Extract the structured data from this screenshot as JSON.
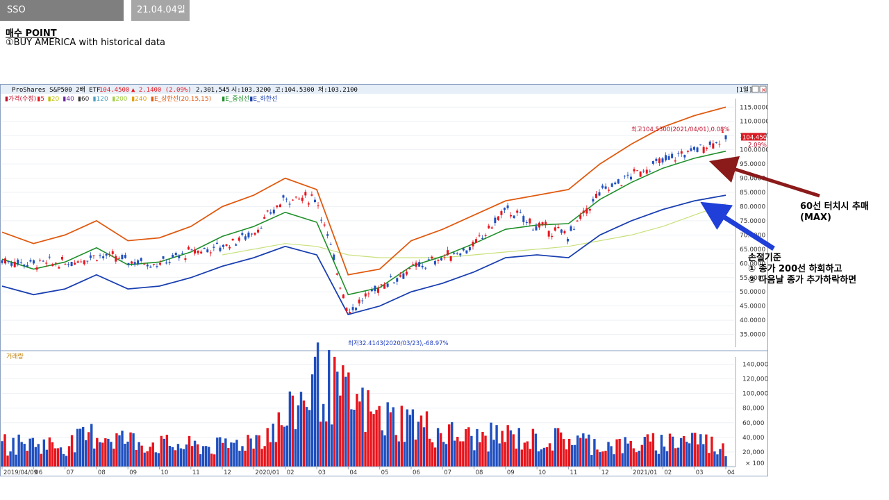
{
  "tabs": {
    "title": "SSO",
    "date": "21.04.04일"
  },
  "heading": "매수 POINT",
  "subtitle": "①BUY AMERICA with historical data",
  "chart_header": {
    "name": "ProShares S&P500 2배 ETF",
    "price": "104.4500",
    "change": "▲ 2.1400 (2.09%)",
    "volume": "2,301,545",
    "ohlc": "시:103.3200 고:104.5300 저:103.2100",
    "period": "[1일]"
  },
  "legend": {
    "price": "가격(수정)",
    "ma": [
      "5",
      "20",
      "40",
      "60",
      "120",
      "200",
      "240"
    ],
    "envelope": [
      "E_상한선(20,15,15)",
      "E_중심선",
      "E_하한선"
    ],
    "volume": "거래량"
  },
  "colors": {
    "up": "#e8141c",
    "down": "#1f4fbf",
    "upper_band": "#e05a10",
    "middle_band": "#1f8f2a",
    "lower_band": "#1a3fb0",
    "ma200": "#c8e07a",
    "ma240": "#e0c050",
    "ma120": "#7ab0c8"
  },
  "callouts": {
    "high": "최고104.5300(2021/04/01),0.08%",
    "low": "최저32.4143(2020/03/23),-68.97%",
    "last_price": "104.4500",
    "last_change": "2.09%"
  },
  "annotations": {
    "sell": [
      "60선 터치시 추매",
      "(MAX)"
    ],
    "stoploss": [
      "손절기준",
      "① 종가 200선 하회하고",
      "② 다음날 종가 추가하락하면"
    ]
  },
  "chart_data": [
    {
      "type": "line",
      "title": "ProShares S&P500 2배 ETF",
      "y_ticks": [
        "115.0000",
        "110.0000",
        "105.0000",
        "100.0000",
        "95.0000",
        "90.0000",
        "85.0000",
        "80.0000",
        "75.0000",
        "70.0000",
        "65.0000",
        "60.0000",
        "55.0000",
        "50.0000",
        "45.0000",
        "40.0000",
        "35.0000"
      ],
      "ylim": [
        30.5,
        118
      ],
      "x_ticks": [
        "2019/04/09",
        "06",
        "07",
        "08",
        "09",
        "10",
        "11",
        "12",
        "2020/01",
        "02",
        "03",
        "04",
        "05",
        "06",
        "07",
        "08",
        "09",
        "10",
        "11",
        "12",
        "2021/01",
        "02",
        "03",
        "04"
      ],
      "close_monthly": [
        61,
        60,
        60,
        63,
        61,
        60,
        64,
        66,
        71,
        83,
        83,
        43,
        52,
        58,
        62,
        66,
        79,
        73,
        70,
        85,
        91,
        96,
        100,
        104.45
      ],
      "upper_band_monthly": [
        71,
        67,
        70,
        75,
        68,
        69,
        73,
        80,
        84,
        90,
        86,
        56,
        58,
        68,
        72,
        77,
        82,
        84,
        86,
        95,
        102,
        108,
        112,
        115
      ],
      "lower_band_monthly": [
        52,
        49,
        51,
        56,
        51,
        52,
        55,
        59,
        62,
        66,
        63,
        42,
        45,
        50,
        53,
        57,
        62,
        63,
        62,
        70,
        75,
        79,
        82,
        84
      ],
      "ma200_monthly": [
        null,
        null,
        null,
        null,
        null,
        null,
        null,
        63,
        65,
        67,
        66,
        63,
        62,
        62,
        62,
        63,
        64,
        65,
        66,
        68,
        70,
        73,
        77,
        81
      ]
    },
    {
      "type": "bar",
      "title": "거래량",
      "unit": "× 100",
      "y_ticks": [
        "140,000",
        "120,000",
        "100,000",
        "80,000",
        "60,000",
        "40,000",
        "20,000"
      ],
      "ylim": [
        0,
        150000
      ],
      "monthly_volume": [
        30000,
        32000,
        28000,
        45000,
        36000,
        30000,
        28000,
        27000,
        38000,
        60000,
        120000,
        90000,
        65000,
        62000,
        45000,
        38000,
        42000,
        35000,
        38000,
        30000,
        28000,
        33000,
        40000,
        22000
      ]
    }
  ]
}
